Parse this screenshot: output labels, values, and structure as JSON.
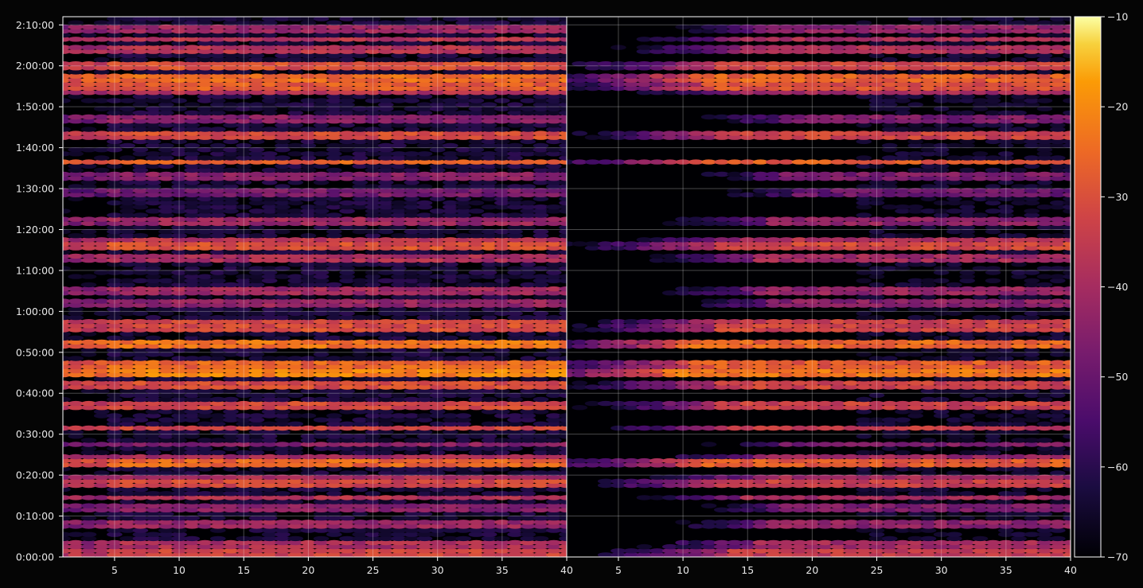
{
  "chart_data": {
    "type": "heatmap",
    "title": "",
    "xlabel": "",
    "ylabel": "",
    "panels": [
      {
        "name": "",
        "xlim": [
          1,
          40
        ],
        "xticks": [
          5,
          10,
          15,
          20,
          25,
          30,
          35,
          40
        ],
        "grid": true
      },
      {
        "name": "",
        "xlim": [
          1,
          40
        ],
        "xticks": [
          5,
          10,
          15,
          20,
          25,
          30,
          35,
          40
        ],
        "grid": true
      }
    ],
    "y_axis": {
      "unit": "elapsed time (h:mm:ss)",
      "ylim_seconds": [
        0,
        7920
      ],
      "ticks": [
        "0:00:00",
        "0:10:00",
        "0:20:00",
        "0:30:00",
        "0:40:00",
        "0:50:00",
        "1:00:00",
        "1:10:00",
        "1:20:00",
        "1:30:00",
        "1:40:00",
        "1:50:00",
        "2:00:00",
        "2:10:00"
      ]
    },
    "colorbar": {
      "colormap": "inferno",
      "range": [
        -70,
        -10
      ],
      "ticks": [
        "−10",
        "−20",
        "−30",
        "−40",
        "−50",
        "−60",
        "−70"
      ],
      "placement": "right"
    },
    "bands_minutes": [
      {
        "t": 1,
        "level": -38
      },
      {
        "t": 3,
        "level": -44
      },
      {
        "t": 8,
        "level": -47
      },
      {
        "t": 12,
        "level": -50
      },
      {
        "t": 14.5,
        "level": -38
      },
      {
        "t": 18,
        "level": -37
      },
      {
        "t": 19.5,
        "level": -39
      },
      {
        "t": 23,
        "level": -31
      },
      {
        "t": 24.5,
        "level": -40
      },
      {
        "t": 27.5,
        "level": -45
      },
      {
        "t": 31.5,
        "level": -33
      },
      {
        "t": 37,
        "level": -37
      },
      {
        "t": 42,
        "level": -36
      },
      {
        "t": 45,
        "level": -26
      },
      {
        "t": 47,
        "level": -31
      },
      {
        "t": 52,
        "level": -29
      },
      {
        "t": 56,
        "level": -36
      },
      {
        "t": 57.5,
        "level": -32
      },
      {
        "t": 62,
        "level": -48
      },
      {
        "t": 65,
        "level": -46
      },
      {
        "t": 73,
        "level": -44
      },
      {
        "t": 76,
        "level": -35
      },
      {
        "t": 77.5,
        "level": -37
      },
      {
        "t": 82,
        "level": -47
      },
      {
        "t": 89,
        "level": -53
      },
      {
        "t": 93,
        "level": -50
      },
      {
        "t": 96.5,
        "level": -26
      },
      {
        "t": 103,
        "level": -36
      },
      {
        "t": 107,
        "level": -50
      },
      {
        "t": 113.5,
        "level": -38
      },
      {
        "t": 115,
        "level": -33
      },
      {
        "t": 117,
        "level": -30
      },
      {
        "t": 120,
        "level": -35
      },
      {
        "t": 124,
        "level": -42
      },
      {
        "t": 126.5,
        "level": -37
      },
      {
        "t": 129,
        "level": -47
      }
    ]
  }
}
